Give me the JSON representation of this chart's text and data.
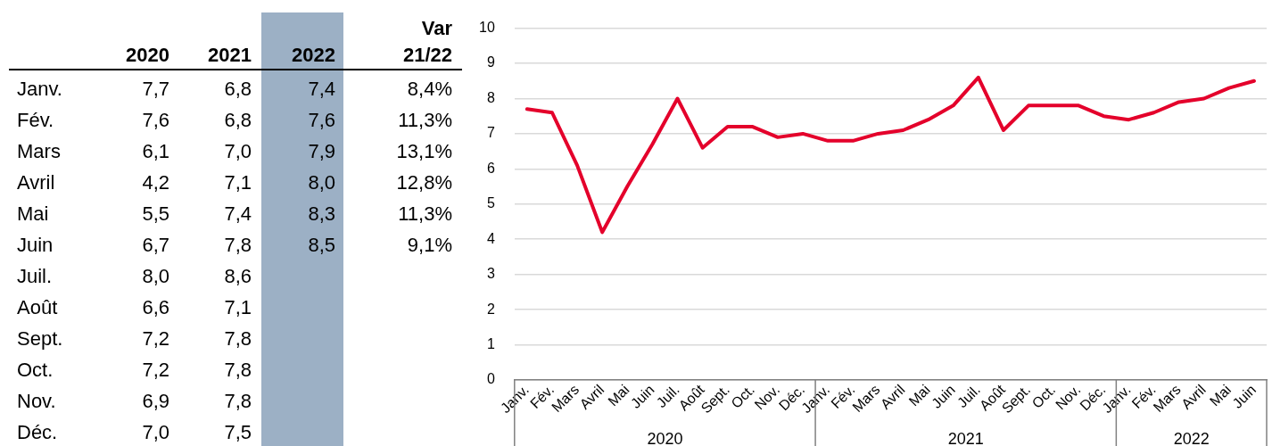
{
  "chart_data": [
    {
      "type": "other",
      "data_labels": true,
      "categories": [
        "Janv.",
        "Fév.",
        "Mars",
        "Avril",
        "Mai",
        "Juin",
        "Juil.",
        "Août",
        "Sept.",
        "Oct.",
        "Nov.",
        "Déc."
      ],
      "series": [
        {
          "name": "2020",
          "values": [
            7.7,
            7.6,
            6.1,
            4.2,
            5.5,
            6.7,
            8.0,
            6.6,
            7.2,
            7.2,
            6.9,
            7.0
          ],
          "value_labels": [
            "7,7",
            "7,6",
            "6,1",
            "4,2",
            "5,5",
            "6,7",
            "8,0",
            "6,6",
            "7,2",
            "7,2",
            "6,9",
            "7,0"
          ]
        },
        {
          "name": "2021",
          "values": [
            6.8,
            6.8,
            7.0,
            7.1,
            7.4,
            7.8,
            8.6,
            7.1,
            7.8,
            7.8,
            7.8,
            7.5
          ],
          "value_labels": [
            "6,8",
            "6,8",
            "7,0",
            "7,1",
            "7,4",
            "7,8",
            "8,6",
            "7,1",
            "7,8",
            "7,8",
            "7,8",
            "7,5"
          ]
        },
        {
          "name": "2022",
          "color": "#9cb0c5",
          "values": [
            7.4,
            7.6,
            7.9,
            8.0,
            8.3,
            8.5,
            null,
            null,
            null,
            null,
            null,
            null
          ],
          "value_labels": [
            "7,4",
            "7,6",
            "7,9",
            "8,0",
            "8,3",
            "8,5",
            null,
            null,
            null,
            null,
            null,
            null
          ]
        },
        {
          "name": "Var 21/22",
          "values": [
            8.4,
            11.3,
            13.1,
            12.8,
            11.3,
            9.1,
            null,
            null,
            null,
            null,
            null,
            null
          ],
          "value_labels": [
            "8,4%",
            "11,3%",
            "13,1%",
            "12,8%",
            "11,3%",
            "9,1%",
            null,
            null,
            null,
            null,
            null,
            null
          ]
        }
      ]
    },
    {
      "type": "line",
      "color": "#e4002b",
      "ylim": [
        0,
        10
      ],
      "yticks": [
        0,
        1,
        2,
        3,
        4,
        5,
        6,
        7,
        8,
        9,
        10
      ],
      "grid": "y",
      "legend": false,
      "categories": [
        "Janv.",
        "Fév.",
        "Mars",
        "Avril",
        "Mai",
        "Juin",
        "Juil.",
        "Août",
        "Sept.",
        "Oct.",
        "Nov.",
        "Déc.",
        "Janv.",
        "Fév.",
        "Mars",
        "Avril",
        "Mai",
        "Juin",
        "Juil.",
        "Août",
        "Sept.",
        "Oct.",
        "Nov.",
        "Déc.",
        "Janv.",
        "Fév.",
        "Mars",
        "Avril",
        "Mai",
        "Juin"
      ],
      "values": [
        7.7,
        7.6,
        6.1,
        4.2,
        5.5,
        6.7,
        8.0,
        6.6,
        7.2,
        7.2,
        6.9,
        7.0,
        6.8,
        6.8,
        7.0,
        7.1,
        7.4,
        7.8,
        8.6,
        7.1,
        7.8,
        7.8,
        7.8,
        7.5,
        7.4,
        7.6,
        7.9,
        8.0,
        8.3,
        8.5
      ],
      "annotations": [
        "2020",
        "2021",
        "2022"
      ]
    }
  ]
}
